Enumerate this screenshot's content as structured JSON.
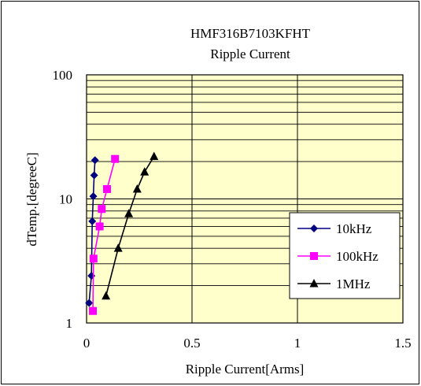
{
  "chart_data": {
    "type": "line",
    "title": "HMF316B7103KFHT",
    "subtitle": "Ripple Current",
    "xlabel": "Ripple Current[Arms]",
    "ylabel": "dTemp.[degreeC]",
    "xlim": [
      0,
      1.5
    ],
    "ylim": [
      1,
      100
    ],
    "y_scale": "log",
    "x_ticks": [
      "0",
      "0.5",
      "1",
      "1.5"
    ],
    "y_ticks": [
      "1",
      "10",
      "100"
    ],
    "grid": true,
    "plot_background": "#ffffcc",
    "legend_position": "right",
    "series": [
      {
        "name": "10kHz",
        "color": "#000080",
        "marker": "diamond",
        "x": [
          0.012,
          0.023,
          0.027,
          0.032,
          0.036,
          0.04
        ],
        "y": [
          1.45,
          2.4,
          6.6,
          10.5,
          15.5,
          20.5
        ]
      },
      {
        "name": "100kHz",
        "color": "#ff00ff",
        "marker": "square",
        "x": [
          0.03,
          0.033,
          0.062,
          0.072,
          0.097,
          0.135
        ],
        "y": [
          1.25,
          3.3,
          6.0,
          8.3,
          12.0,
          21.0
        ]
      },
      {
        "name": "1MHz",
        "color": "#000000",
        "marker": "triangle",
        "x": [
          0.092,
          0.15,
          0.2,
          0.24,
          0.275,
          0.32
        ],
        "y": [
          1.65,
          4.0,
          7.6,
          12.0,
          16.5,
          22.0
        ]
      }
    ]
  }
}
